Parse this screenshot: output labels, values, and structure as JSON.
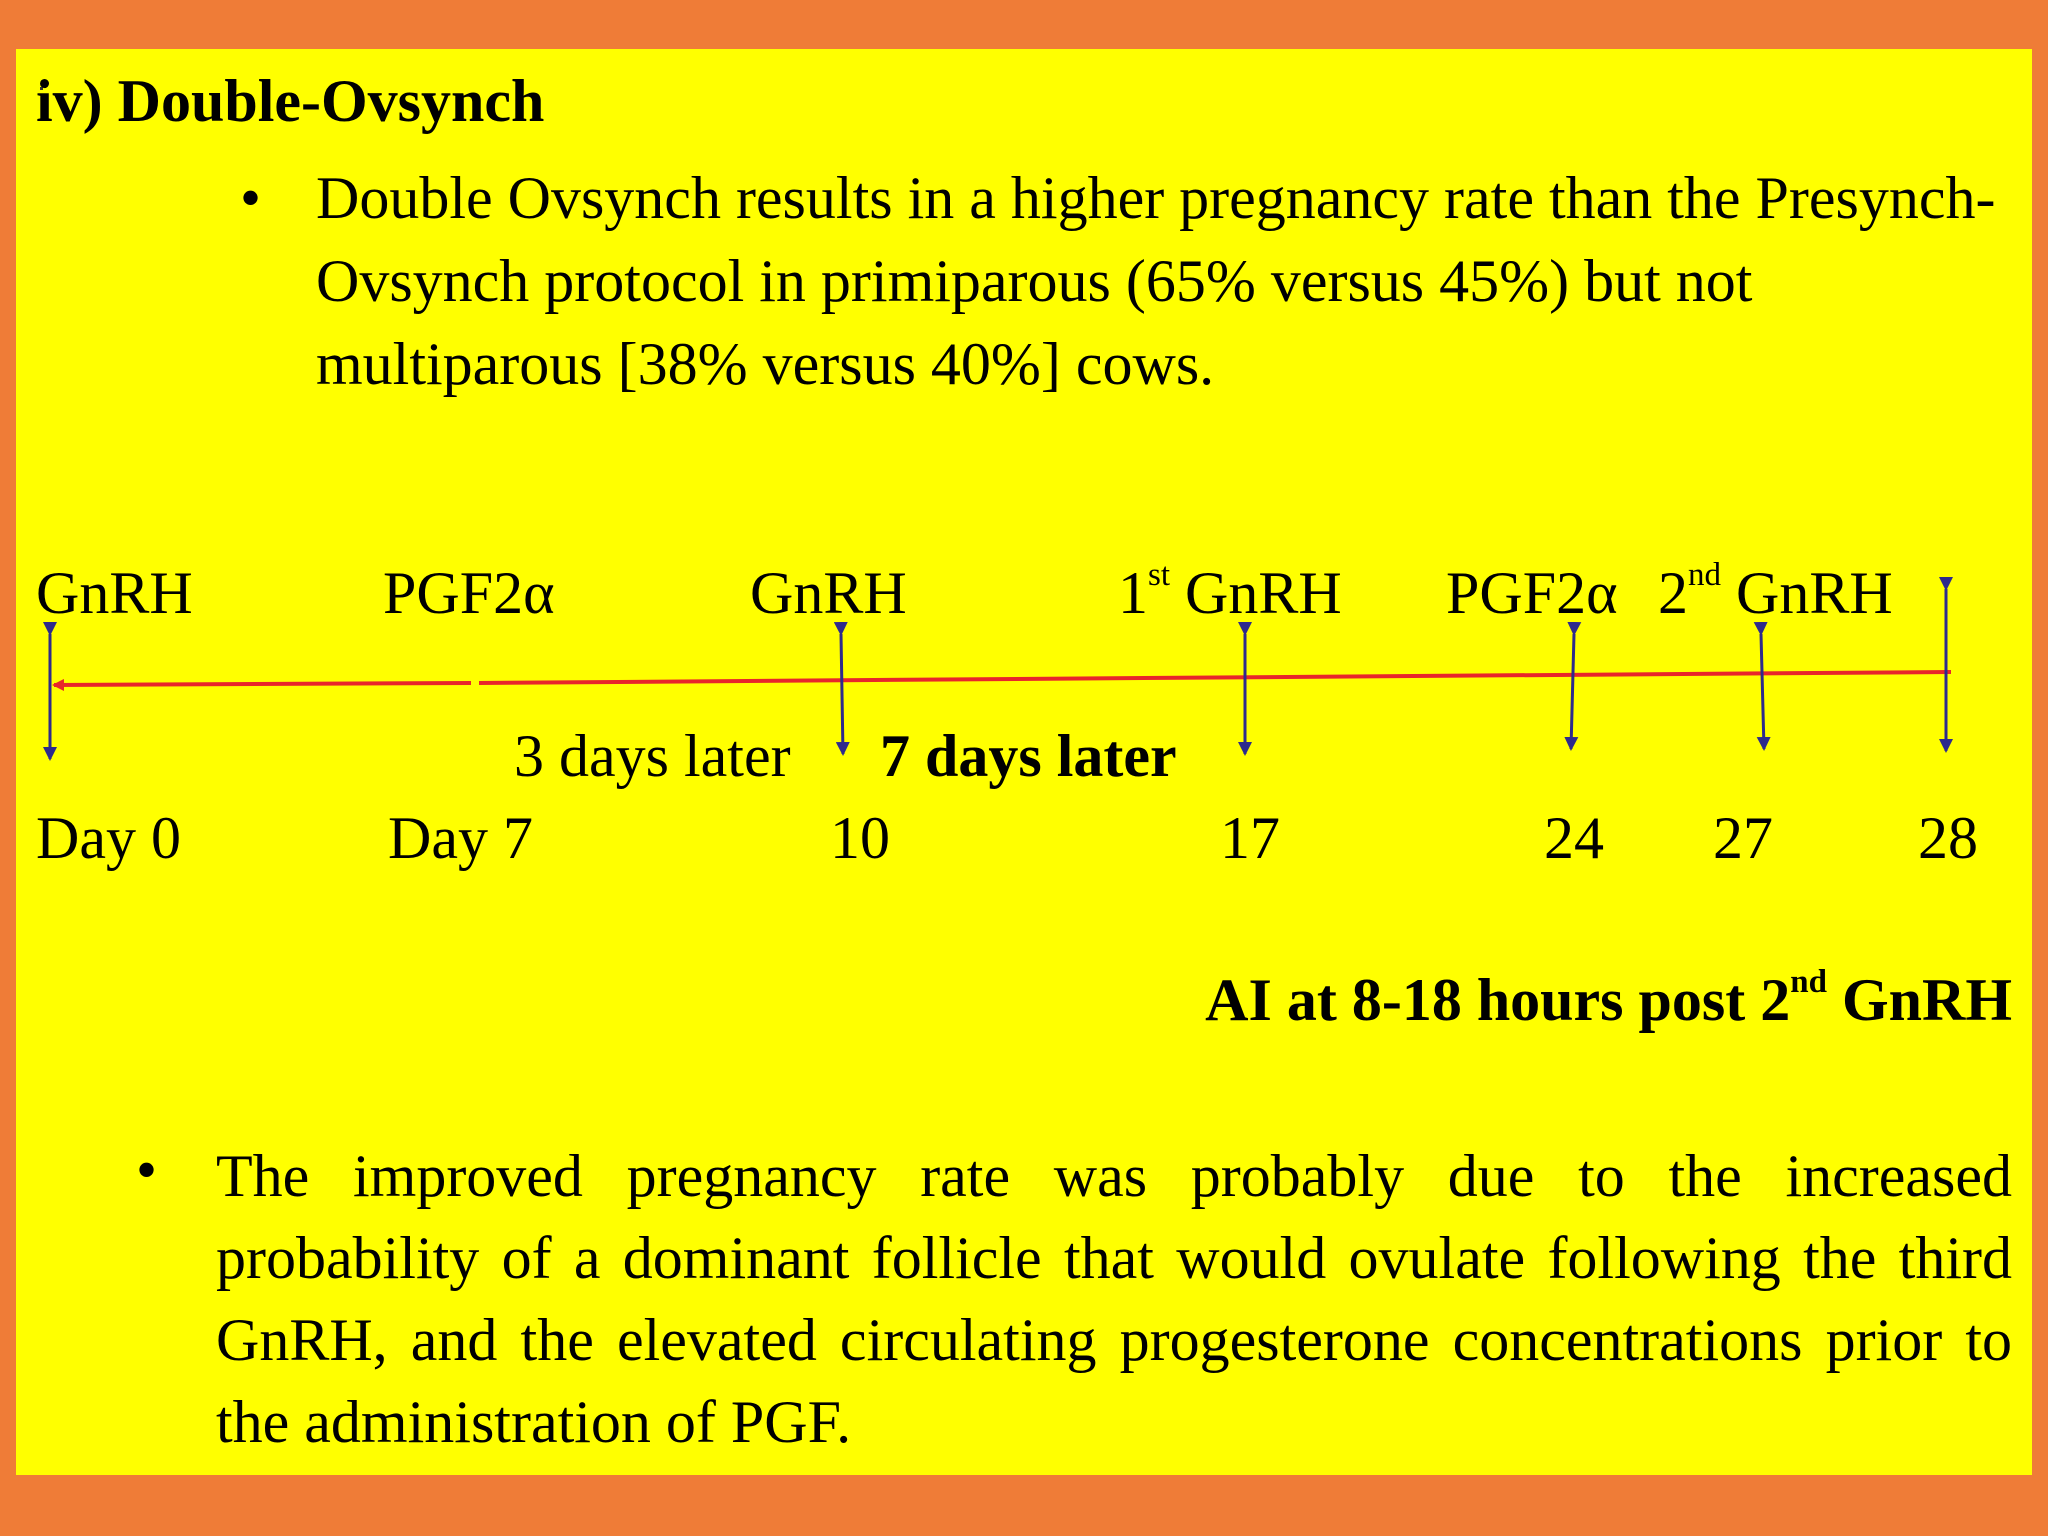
{
  "title": "iv) Double-Ovsynch",
  "bullet_char": "•",
  "bullet1": "Double Ovsynch results in a higher pregnancy rate than the Presynch-Ovsynch protocol in primiparous (65% versus 45%) but not multiparous [38% versus 40%] cows.",
  "timeline": {
    "top_labels": {
      "gnrh_day0": "GnRH",
      "pgf_day7": "PGF2α",
      "gnrh_day10": "GnRH",
      "first_gnrh_day17": {
        "sup": "st",
        "pre": "1",
        "post": " GnRH"
      },
      "pgf_day24": "PGF2α",
      "second_gnrh_day27": {
        "pre": "2",
        "sup": "nd",
        "post": " GnRH"
      }
    },
    "interval_labels": {
      "three_days": "3 days later",
      "seven_days": "7 days later"
    },
    "day_labels": [
      "Day 0",
      "Day 7",
      "10",
      "17",
      "24",
      "27",
      "28"
    ],
    "colors": {
      "axis": "#E8262B",
      "arrows": "#2E2A8C"
    }
  },
  "ai_note": {
    "pre": "AI at 8-18 hours post 2",
    "sup": "nd",
    "post": " GnRH"
  },
  "bullet2": "The improved pregnancy rate was probably due to the increased probability of a dominant follicle that would ovulate following the third GnRH, and the elevated circulating progesterone concentrations prior to the administration of PGF."
}
